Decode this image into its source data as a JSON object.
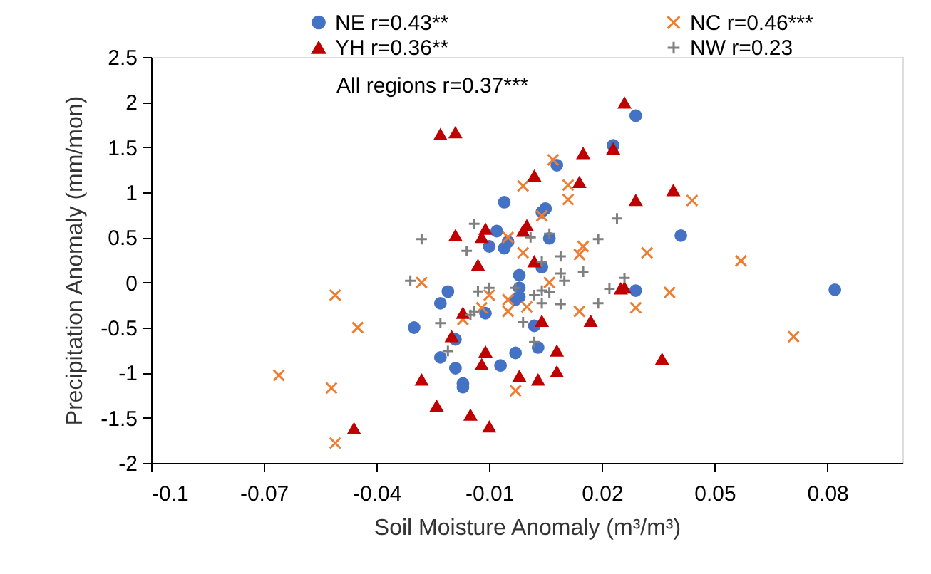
{
  "chart_data": {
    "type": "scatter",
    "xlabel": "Soil Moisture Anomaly (m³/m³)",
    "ylabel": "Precipitation Anomaly (mm/mon)",
    "xlim": [
      -0.1,
      0.1
    ],
    "xticks": [
      -0.1,
      -0.07,
      -0.04,
      -0.01,
      0.02,
      0.05,
      0.08
    ],
    "ylim": [
      -2,
      2.5
    ],
    "yticks": [
      -2,
      -1.5,
      -1,
      -0.5,
      0,
      0.5,
      1,
      1.5,
      2,
      2.5
    ],
    "grid": false,
    "legend": "top",
    "annotations": [
      "All regions r=0.37***"
    ],
    "series": [
      {
        "name": "NE r=0.43**",
        "color": "#4472c4",
        "marker": "circle",
        "x": [
          -0.006,
          0.029,
          0.023,
          0.008,
          0.005,
          0.004,
          -0.008,
          -0.005,
          -0.01,
          -0.006,
          -0.002,
          -0.021,
          -0.023,
          -0.002,
          -0.003,
          -0.011,
          -0.03,
          -0.019,
          -0.023,
          -0.019,
          -0.007,
          -0.003,
          -0.017,
          -0.017,
          0.006,
          0.041,
          0.004,
          0.029,
          0.082,
          -0.002,
          0.002,
          0.003
        ],
        "values": [
          0.89,
          1.85,
          1.52,
          1.3,
          0.82,
          0.78,
          0.57,
          0.45,
          0.4,
          0.38,
          0.08,
          -0.1,
          -0.23,
          -0.06,
          -0.19,
          -0.34,
          -0.5,
          -0.63,
          -0.83,
          -0.95,
          -0.92,
          -0.78,
          -1.12,
          -1.16,
          0.49,
          0.52,
          0.17,
          -0.09,
          -0.08,
          -0.16,
          -0.48,
          -0.72
        ]
      },
      {
        "name": "NC r=0.46***",
        "color": "#ed7d31",
        "marker": "x",
        "x": [
          -0.001,
          0.007,
          0.011,
          0.011,
          0.044,
          0.004,
          -0.005,
          -0.001,
          -0.028,
          -0.051,
          -0.01,
          -0.005,
          -0.005,
          -0.012,
          -0.017,
          -0.045,
          -0.066,
          -0.003,
          -0.052,
          -0.051,
          0.015,
          0.014,
          0.032,
          0.057,
          0.006,
          0.038,
          0.0,
          0.014,
          0.029,
          0.071
        ],
        "values": [
          1.07,
          1.36,
          1.08,
          0.92,
          0.91,
          0.74,
          0.5,
          0.33,
          0.0,
          -0.14,
          -0.14,
          -0.19,
          -0.32,
          -0.28,
          -0.41,
          -0.5,
          -1.03,
          -1.2,
          -1.17,
          -1.78,
          0.4,
          0.31,
          0.33,
          0.24,
          0.0,
          -0.11,
          -0.27,
          -0.32,
          -0.28,
          -0.6
        ]
      },
      {
        "name": "YH r=0.36**",
        "color": "#c00000",
        "marker": "triangle",
        "x": [
          -0.023,
          -0.019,
          0.026,
          0.023,
          0.015,
          0.002,
          0.014,
          0.029,
          0.039,
          0.0,
          -0.011,
          -0.019,
          -0.012,
          -0.001,
          -0.013,
          -0.017,
          -0.02,
          -0.011,
          -0.012,
          -0.028,
          -0.002,
          -0.024,
          -0.015,
          -0.01,
          -0.046,
          0.002,
          0.025,
          0.026,
          0.004,
          0.017,
          0.008,
          0.036,
          0.008,
          0.003
        ],
        "values": [
          1.64,
          1.66,
          1.99,
          1.48,
          1.43,
          1.18,
          1.11,
          0.91,
          1.02,
          0.63,
          0.59,
          0.52,
          0.5,
          0.57,
          0.19,
          -0.34,
          -0.6,
          -0.77,
          -0.91,
          -1.08,
          -1.04,
          -1.37,
          -1.47,
          -1.6,
          -1.62,
          0.23,
          -0.07,
          -0.06,
          -0.43,
          -0.43,
          -0.76,
          -0.85,
          -0.99,
          -1.08
        ]
      },
      {
        "name": "NW r=0.23",
        "color": "#7f7f7f",
        "marker": "cross",
        "x": [
          -0.014,
          0.024,
          -0.028,
          -0.016,
          -0.031,
          -0.013,
          -0.01,
          -0.003,
          -0.014,
          -0.015,
          -0.023,
          -0.001,
          -0.021,
          0.001,
          0.006,
          0.019,
          0.009,
          0.004,
          0.015,
          0.009,
          0.01,
          0.026,
          0.022,
          0.002,
          0.004,
          0.006,
          0.004,
          0.009,
          0.019,
          0.002
        ],
        "values": [
          0.65,
          0.71,
          0.48,
          0.35,
          0.02,
          -0.1,
          -0.06,
          -0.06,
          -0.32,
          -0.36,
          -0.45,
          -0.44,
          -0.76,
          0.5,
          0.54,
          0.48,
          0.29,
          0.23,
          0.12,
          0.1,
          0.02,
          0.05,
          -0.07,
          -0.14,
          -0.09,
          -0.11,
          -0.23,
          -0.24,
          -0.23,
          -0.66
        ]
      }
    ]
  }
}
